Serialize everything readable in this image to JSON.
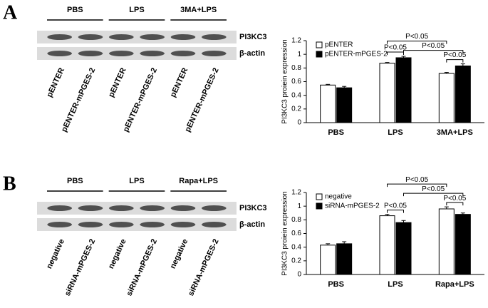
{
  "panels": [
    {
      "label": "A",
      "blot": {
        "groups": [
          "PBS",
          "LPS",
          "3MA+LPS"
        ],
        "lanes": [
          "pENTER",
          "pENTER-mPGES-2",
          "pENTER",
          "pENTER-mPGES-2",
          "pENTER",
          "pENTER-mPGES-2"
        ],
        "bands": [
          "PI3KC3",
          "β-actin"
        ]
      }
    },
    {
      "label": "B",
      "blot": {
        "groups": [
          "PBS",
          "LPS",
          "Rapa+LPS"
        ],
        "lanes": [
          "negative",
          "siRNA-mPGES-2",
          "negative",
          "siRNA-mPGES-2",
          "negative",
          "siRNA-mPGES-2"
        ],
        "bands": [
          "PI3KC3",
          "β-actin"
        ]
      }
    }
  ],
  "chart_data": [
    {
      "type": "bar",
      "y_label": "PI3KC3 proiein expression",
      "categories": [
        "PBS",
        "LPS",
        "3MA+LPS"
      ],
      "series": [
        {
          "name": "pENTER",
          "color": "#ffffff",
          "values": [
            0.55,
            0.87,
            0.72
          ],
          "errors": [
            0.01,
            0.01,
            0.015
          ]
        },
        {
          "name": "pENTER-mPGES-2",
          "color": "#000000",
          "values": [
            0.51,
            0.95,
            0.83
          ],
          "errors": [
            0.02,
            0.02,
            0.03
          ]
        }
      ],
      "ylim": [
        0,
        1.2
      ],
      "yticks": [
        0,
        0.2,
        0.4,
        0.6,
        0.8,
        1,
        1.2
      ],
      "legend": "upper left",
      "annotations": [
        {
          "text": "P<0.05",
          "from": [
            2,
            0
          ],
          "to": [
            2,
            1
          ]
        },
        {
          "text": "P<0.05",
          "from": [
            1,
            0
          ],
          "to": [
            1,
            1
          ]
        },
        {
          "text": "P<0.05",
          "from": [
            1,
            1
          ],
          "to": [
            2,
            1
          ]
        },
        {
          "text": "P<0.05",
          "from": [
            1,
            0
          ],
          "to": [
            2,
            0
          ]
        }
      ]
    },
    {
      "type": "bar",
      "y_label": "PI3KC3 proiein expression",
      "categories": [
        "PBS",
        "LPS",
        "Rapa+LPS"
      ],
      "series": [
        {
          "name": "negative",
          "color": "#ffffff",
          "values": [
            0.43,
            0.86,
            0.96
          ],
          "errors": [
            0.02,
            0.02,
            0.03
          ]
        },
        {
          "name": "siRNA-mPGES-2",
          "color": "#000000",
          "values": [
            0.45,
            0.76,
            0.88
          ],
          "errors": [
            0.03,
            0.03,
            0.02
          ]
        }
      ],
      "ylim": [
        0,
        1.2
      ],
      "yticks": [
        0,
        0.2,
        0.4,
        0.6,
        0.8,
        1,
        1.2
      ],
      "legend": "upper left",
      "annotations": [
        {
          "text": "P<0.05",
          "from": [
            2,
            0
          ],
          "to": [
            2,
            1
          ]
        },
        {
          "text": "P<0.05",
          "from": [
            1,
            0
          ],
          "to": [
            1,
            1
          ]
        },
        {
          "text": "P<0.05",
          "from": [
            1,
            1
          ],
          "to": [
            2,
            1
          ]
        },
        {
          "text": "P<0.05",
          "from": [
            1,
            0
          ],
          "to": [
            2,
            0
          ]
        }
      ]
    }
  ]
}
